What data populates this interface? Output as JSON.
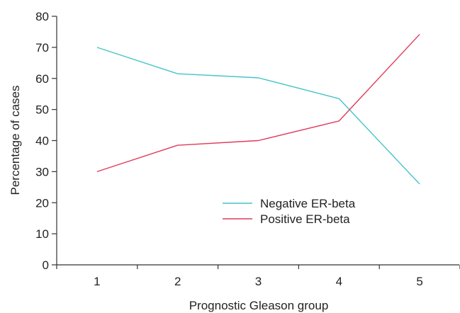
{
  "chart_data": {
    "type": "line",
    "title": "",
    "xlabel": "Prognostic Gleason group",
    "ylabel": "Percentage of cases",
    "x": [
      1,
      2,
      3,
      4,
      5
    ],
    "x_tick_labels": [
      "1",
      "2",
      "3",
      "4",
      "5"
    ],
    "xlim": [
      0.5,
      5.5
    ],
    "ylim": [
      0,
      80
    ],
    "y_ticks": [
      0,
      10,
      20,
      30,
      40,
      50,
      60,
      70,
      80
    ],
    "y_tick_labels": [
      "0",
      "10",
      "20",
      "30",
      "40",
      "50",
      "60",
      "70",
      "80"
    ],
    "grid": false,
    "legend_position": "center-right",
    "series": [
      {
        "name": "Negative ER-beta",
        "color": "#45c4c8",
        "values": [
          70,
          61.5,
          60.2,
          53.5,
          26
        ]
      },
      {
        "name": "Positive ER-beta",
        "color": "#e03a5c",
        "values": [
          30,
          38.5,
          40,
          46.3,
          74.2
        ]
      }
    ]
  }
}
